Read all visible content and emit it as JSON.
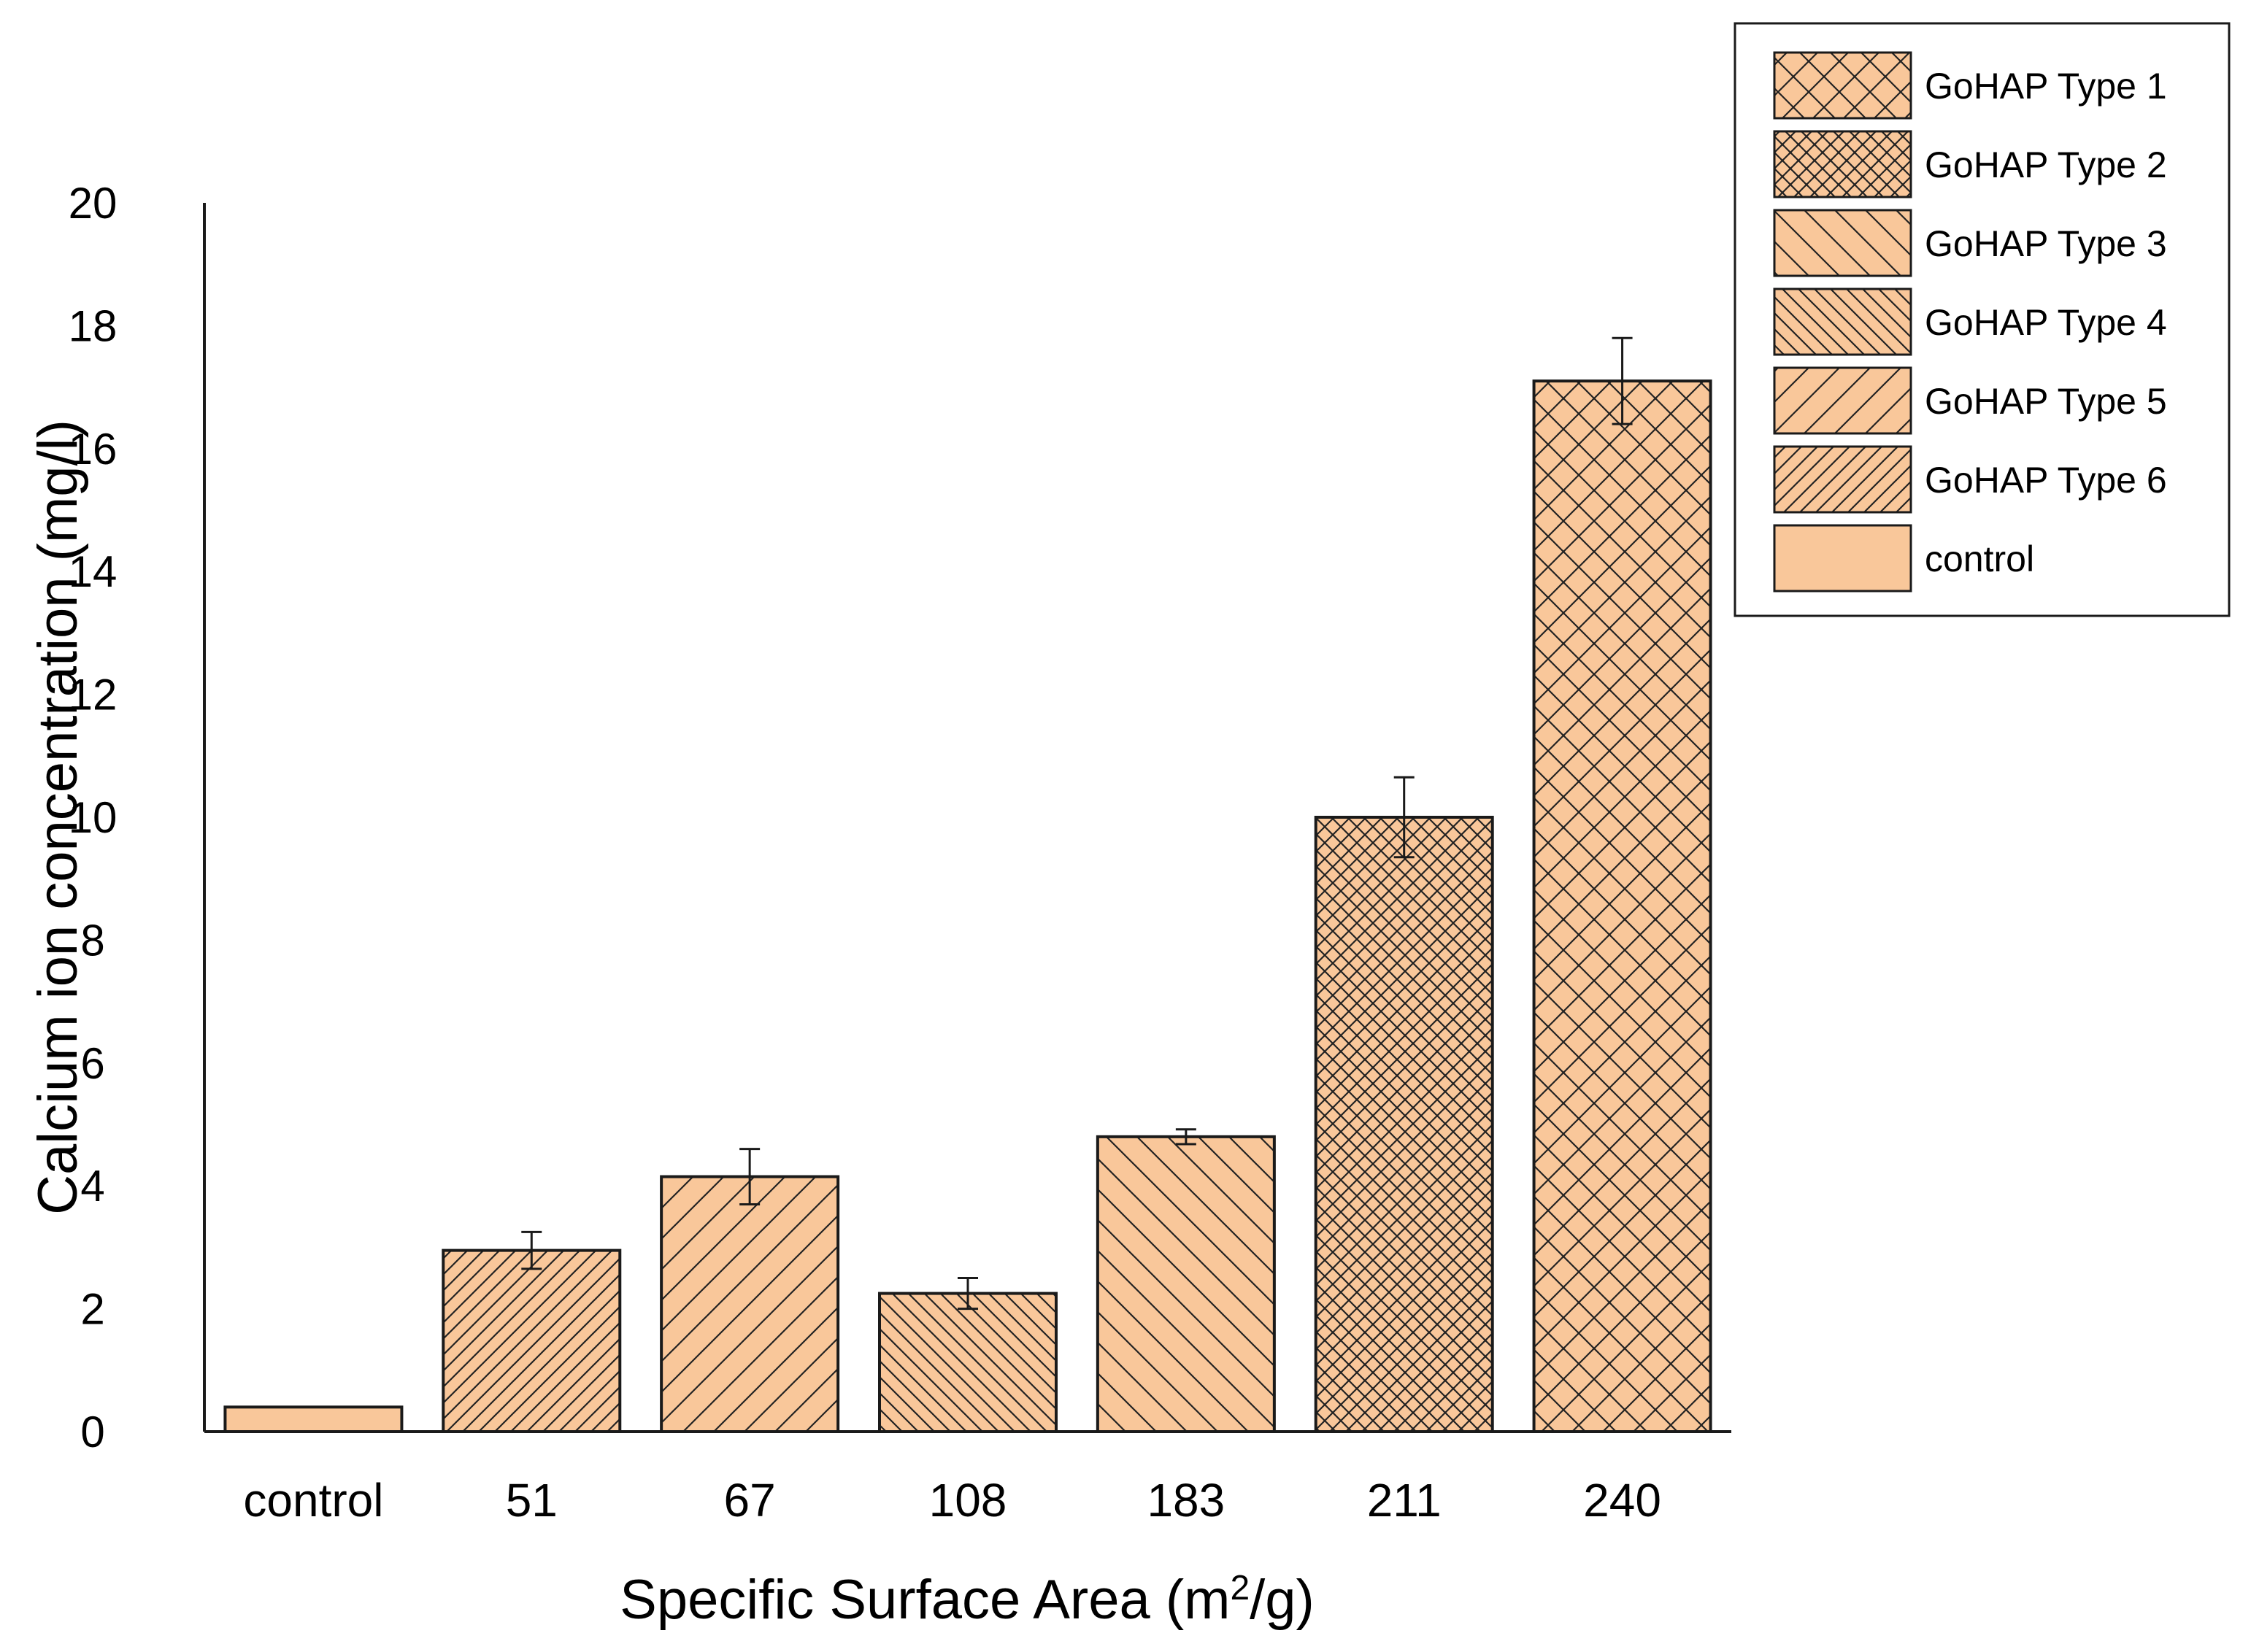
{
  "chart_data": {
    "type": "bar",
    "title": "",
    "xlabel": {
      "main": "Specific Surface Area (m",
      "sup": "2",
      "tail": "/g)"
    },
    "ylabel": "Calcium ion concentration (mg/l)",
    "ylim": [
      0,
      20
    ],
    "yticks": [
      0,
      2,
      4,
      6,
      8,
      10,
      12,
      14,
      16,
      18,
      20
    ],
    "grid": false,
    "legend_position": "top-right",
    "bar_color": "#f9c79a",
    "edge_color": "#1a1a1a",
    "categories": [
      "control",
      "51",
      "67",
      "108",
      "183",
      "211",
      "240"
    ],
    "values": [
      0.4,
      2.95,
      4.15,
      2.25,
      4.8,
      10.0,
      17.1
    ],
    "errors": [
      0,
      0.3,
      0.45,
      0.25,
      0.12,
      0.65,
      0.7
    ],
    "bar_series": [
      "control",
      "GoHAP Type 6",
      "GoHAP Type 5",
      "GoHAP Type 4",
      "GoHAP Type 3",
      "GoHAP Type 2",
      "GoHAP Type 1"
    ],
    "legend": [
      {
        "label": "GoHAP Type 1",
        "pattern": "cross-wide"
      },
      {
        "label": "GoHAP Type 2",
        "pattern": "cross-dense"
      },
      {
        "label": "GoHAP Type 3",
        "pattern": "backslash-wide"
      },
      {
        "label": "GoHAP Type 4",
        "pattern": "backslash-dense"
      },
      {
        "label": "GoHAP Type 5",
        "pattern": "slash-wide"
      },
      {
        "label": "GoHAP Type 6",
        "pattern": "slash-dense"
      },
      {
        "label": "control",
        "pattern": "none"
      }
    ]
  }
}
